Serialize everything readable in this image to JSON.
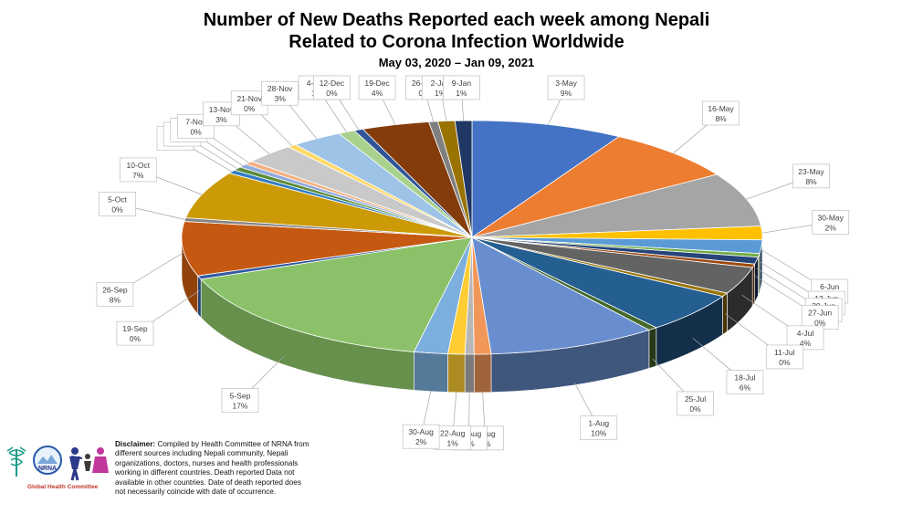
{
  "chart_data": {
    "type": "pie",
    "title_lines": [
      "Number of New Deaths Reported each week among Nepali",
      "Related to Corona Infection Worldwide"
    ],
    "subtitle": "May 03, 2020 – Jan 09, 2021",
    "value_unit": "%",
    "slices": [
      {
        "label": "3-May",
        "value": 9,
        "color": "#4472C4"
      },
      {
        "label": "16-May",
        "value": 8,
        "color": "#ED7D31"
      },
      {
        "label": "23-May",
        "value": 8,
        "color": "#A5A5A5"
      },
      {
        "label": "30-May",
        "value": 2,
        "color": "#FFC000"
      },
      {
        "label": "6-Jun",
        "value": 2,
        "color": "#5B9BD5"
      },
      {
        "label": "13-Jun",
        "value": 0,
        "color": "#70AD47"
      },
      {
        "label": "20-Jun",
        "value": 1,
        "color": "#264478"
      },
      {
        "label": "27-Jun",
        "value": 0,
        "color": "#9E480E"
      },
      {
        "label": "4-Jul",
        "value": 4,
        "color": "#636363"
      },
      {
        "label": "11-Jul",
        "value": 0,
        "color": "#997300"
      },
      {
        "label": "18-Jul",
        "value": 6,
        "color": "#255E91"
      },
      {
        "label": "25-Jul",
        "value": 0,
        "color": "#43682B"
      },
      {
        "label": "1-Aug",
        "value": 10,
        "color": "#698ED0"
      },
      {
        "label": "8-Aug",
        "value": 1,
        "color": "#F1975A"
      },
      {
        "label": "15-Aug",
        "value": 0,
        "color": "#B7B7B7"
      },
      {
        "label": "22-Aug",
        "value": 1,
        "color": "#FFCD33"
      },
      {
        "label": "30-Aug",
        "value": 2,
        "color": "#7CAFDD"
      },
      {
        "label": "5-Sep",
        "value": 17,
        "color": "#8BC168"
      },
      {
        "label": "19-Sep",
        "value": 0,
        "color": "#335AA1"
      },
      {
        "label": "26-Sep",
        "value": 8,
        "color": "#C65911"
      },
      {
        "label": "5-Oct",
        "value": 0,
        "color": "#848484"
      },
      {
        "label": "10-Oct",
        "value": 7,
        "color": "#CC9A06"
      },
      {
        "label": "17-Oct",
        "value": 0,
        "color": "#327DC2"
      },
      {
        "label": "24-Oct",
        "value": 0,
        "color": "#5A8C39"
      },
      {
        "label": "31-Oct",
        "value": 0,
        "color": "#8FAADC"
      },
      {
        "label": "7-Nov",
        "value": 0,
        "color": "#F4B183"
      },
      {
        "label": "13-Nov",
        "value": 3,
        "color": "#C9C9C9"
      },
      {
        "label": "21-Nov",
        "value": 0,
        "color": "#FFD966"
      },
      {
        "label": "28-Nov",
        "value": 3,
        "color": "#9DC3E6"
      },
      {
        "label": "4-Dec",
        "value": 1,
        "color": "#A9D18E"
      },
      {
        "label": "12-Dec",
        "value": 0,
        "color": "#2F5597"
      },
      {
        "label": "19-Dec",
        "value": 4,
        "color": "#843C0C"
      },
      {
        "label": "26-Dec",
        "value": 0,
        "color": "#7F7F7F"
      },
      {
        "label": "2-Jan",
        "value": 1,
        "color": "#997300"
      },
      {
        "label": "9-Jan",
        "value": 1,
        "color": "#1F3864"
      }
    ]
  },
  "disclaimer": {
    "heading": "Disclaimer:",
    "body": "Compiled by Health Committee of NRNA from different sources including Nepali community, Nepali organizations, doctors, nurses and health professionals working in different countries. Death reported Data not available in other countries. Date of death reported does not necessarily coincide with date of occurrence."
  },
  "logo": {
    "badge_text": "NRNA",
    "caption": "Global Health Committee"
  }
}
